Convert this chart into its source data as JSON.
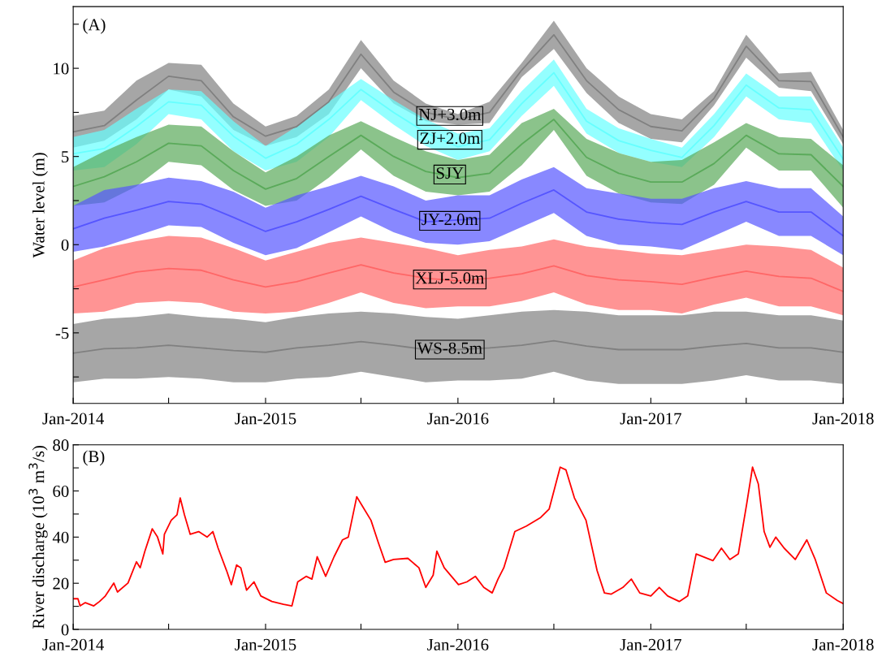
{
  "chart_data": [
    {
      "type": "line",
      "ylabel": "Water level (m)",
      "annotations": [
        "(A)"
      ],
      "x": [
        "2014-01-01",
        "2014-03-01",
        "2014-05-01",
        "2014-07-01",
        "2014-09-01",
        "2014-11-01",
        "2015-01-01",
        "2015-03-01",
        "2015-05-01",
        "2015-07-01",
        "2015-09-01",
        "2015-11-01",
        "2016-01-01",
        "2016-03-01",
        "2016-05-01",
        "2016-07-01",
        "2016-09-01",
        "2016-11-01",
        "2017-01-01",
        "2017-03-01",
        "2017-05-01",
        "2017-07-01",
        "2017-09-01",
        "2017-11-01",
        "2018-01-01"
      ],
      "series": [
        {
          "name": "NJ+3.0m",
          "color": "#808080",
          "values": [
            6.4,
            6.75,
            8.2,
            9.55,
            9.3,
            7.25,
            6.15,
            6.7,
            8.1,
            10.8,
            8.65,
            7.5,
            7.1,
            7.5,
            9.9,
            11.9,
            9.3,
            7.65,
            6.7,
            6.45,
            8.3,
            11.25,
            9.3,
            9.25,
            6.1
          ],
          "upper": [
            7.3,
            7.6,
            9.3,
            10.3,
            10.2,
            8.0,
            6.7,
            7.3,
            8.8,
            11.6,
            9.3,
            8.0,
            7.4,
            8.1,
            10.3,
            12.7,
            10.0,
            8.4,
            7.4,
            7.1,
            8.7,
            11.9,
            9.7,
            9.8,
            6.5
          ],
          "lower": [
            5.5,
            5.9,
            7.1,
            8.8,
            8.4,
            6.5,
            5.6,
            6.1,
            7.4,
            10.0,
            8.0,
            7.0,
            6.8,
            6.9,
            9.5,
            11.1,
            8.6,
            6.9,
            6.0,
            5.8,
            7.9,
            10.6,
            8.9,
            8.7,
            5.7
          ]
        },
        {
          "name": "ZJ+2.0m",
          "color": "#66ffff",
          "values": [
            5.15,
            5.45,
            6.7,
            8.1,
            7.9,
            6.15,
            4.9,
            5.7,
            7.1,
            8.8,
            7.5,
            6.35,
            5.55,
            5.95,
            8.0,
            9.75,
            7.0,
            5.9,
            5.35,
            4.95,
            6.75,
            9.05,
            7.75,
            7.65,
            4.85
          ],
          "upper": [
            6.1,
            6.5,
            7.7,
            8.8,
            8.7,
            7.0,
            5.6,
            6.7,
            8.1,
            9.4,
            8.2,
            7.1,
            6.3,
            6.6,
            8.7,
            10.5,
            7.7,
            6.6,
            6.0,
            5.5,
            7.4,
            9.7,
            8.4,
            8.4,
            5.5
          ],
          "lower": [
            4.2,
            4.4,
            5.7,
            7.4,
            7.1,
            5.3,
            4.2,
            4.7,
            6.1,
            8.2,
            6.8,
            5.6,
            4.8,
            5.3,
            7.3,
            9.0,
            6.3,
            5.2,
            4.7,
            4.4,
            6.1,
            8.4,
            7.1,
            6.9,
            4.2
          ]
        },
        {
          "name": "SJY",
          "color": "#5aaa5a",
          "values": [
            3.3,
            3.85,
            4.7,
            5.75,
            5.6,
            4.2,
            3.15,
            3.75,
            5.0,
            6.2,
            5.0,
            4.15,
            3.8,
            4.05,
            5.7,
            7.1,
            4.95,
            4.05,
            3.55,
            3.55,
            4.6,
            6.2,
            5.15,
            5.1,
            3.3
          ],
          "upper": [
            4.4,
            5.3,
            6.1,
            6.8,
            6.7,
            5.3,
            4.1,
            5.0,
            6.2,
            7.0,
            6.1,
            5.3,
            4.8,
            5.1,
            6.9,
            7.7,
            6.0,
            5.2,
            4.7,
            4.8,
            5.8,
            6.9,
            6.1,
            6.0,
            4.5
          ],
          "lower": [
            2.2,
            2.4,
            3.3,
            4.7,
            4.5,
            3.1,
            2.2,
            2.5,
            3.8,
            5.4,
            3.9,
            3.0,
            2.8,
            3.0,
            4.5,
            6.5,
            3.9,
            2.9,
            2.4,
            2.3,
            3.4,
            5.5,
            4.2,
            4.2,
            2.1
          ]
        },
        {
          "name": "JY-2.0m",
          "color": "#5555ff",
          "values": [
            0.9,
            1.5,
            1.95,
            2.45,
            2.3,
            1.55,
            0.75,
            1.3,
            2.0,
            2.75,
            2.0,
            1.3,
            1.4,
            1.5,
            2.35,
            3.1,
            1.85,
            1.45,
            1.25,
            1.15,
            1.85,
            2.45,
            1.85,
            1.85,
            0.5
          ],
          "upper": [
            2.2,
            3.1,
            3.4,
            3.8,
            3.6,
            3.0,
            2.1,
            2.8,
            3.3,
            3.9,
            3.3,
            2.5,
            2.8,
            2.8,
            3.7,
            4.4,
            3.2,
            2.9,
            2.6,
            2.6,
            3.2,
            3.6,
            3.2,
            3.2,
            1.6
          ],
          "lower": [
            -0.4,
            -0.1,
            0.5,
            1.1,
            1.0,
            0.1,
            -0.6,
            -0.2,
            0.7,
            1.6,
            0.7,
            0.1,
            0.0,
            0.2,
            1.0,
            1.8,
            0.5,
            0.0,
            -0.1,
            -0.3,
            0.5,
            1.3,
            0.5,
            0.5,
            -0.6
          ]
        },
        {
          "name": "XLJ-5.0m",
          "color": "#ff6666",
          "values": [
            -2.4,
            -2.0,
            -1.55,
            -1.35,
            -1.45,
            -2.0,
            -2.4,
            -2.1,
            -1.6,
            -1.15,
            -1.6,
            -1.9,
            -2.05,
            -1.9,
            -1.65,
            -1.2,
            -1.75,
            -2.0,
            -2.1,
            -2.25,
            -1.85,
            -1.5,
            -1.8,
            -1.9,
            -2.65
          ],
          "upper": [
            -0.9,
            -0.2,
            0.2,
            0.5,
            0.4,
            -0.2,
            -0.9,
            -0.4,
            0.1,
            0.4,
            0.1,
            -0.2,
            -0.6,
            -0.3,
            -0.1,
            0.3,
            -0.1,
            -0.3,
            -0.5,
            -0.6,
            -0.3,
            0.0,
            -0.1,
            -0.3,
            -1.3
          ],
          "lower": [
            -3.9,
            -3.8,
            -3.3,
            -3.2,
            -3.3,
            -3.8,
            -3.9,
            -3.8,
            -3.3,
            -2.7,
            -3.3,
            -3.6,
            -3.5,
            -3.5,
            -3.2,
            -2.7,
            -3.4,
            -3.7,
            -3.7,
            -3.9,
            -3.4,
            -3.0,
            -3.5,
            -3.5,
            -4.0
          ]
        },
        {
          "name": "WS-8.5m",
          "color": "#808080",
          "values": [
            -6.15,
            -5.9,
            -5.85,
            -5.7,
            -5.85,
            -6.0,
            -6.1,
            -5.85,
            -5.7,
            -5.5,
            -5.7,
            -5.95,
            -5.95,
            -5.85,
            -5.7,
            -5.45,
            -5.75,
            -5.95,
            -5.95,
            -5.95,
            -5.75,
            -5.6,
            -5.85,
            -5.85,
            -6.1
          ],
          "upper": [
            -4.5,
            -4.2,
            -4.1,
            -3.9,
            -4.1,
            -4.2,
            -4.4,
            -4.1,
            -3.9,
            -3.8,
            -3.9,
            -4.1,
            -4.2,
            -4.0,
            -3.8,
            -3.7,
            -3.8,
            -4.0,
            -4.0,
            -4.0,
            -3.8,
            -3.8,
            -4.0,
            -4.0,
            -4.3
          ],
          "lower": [
            -7.8,
            -7.6,
            -7.6,
            -7.5,
            -7.6,
            -7.8,
            -7.8,
            -7.6,
            -7.5,
            -7.2,
            -7.5,
            -7.8,
            -7.7,
            -7.7,
            -7.6,
            -7.2,
            -7.7,
            -7.9,
            -7.9,
            -7.9,
            -7.7,
            -7.4,
            -7.7,
            -7.7,
            -7.9
          ]
        }
      ],
      "xlim": [
        "2014-01-01",
        "2018-01-01"
      ],
      "xticks": [
        {
          "value": "2014-01-01",
          "label": "Jan-2014"
        },
        {
          "value": "2014-07-01",
          "label": null
        },
        {
          "value": "2015-01-01",
          "label": "Jan-2015"
        },
        {
          "value": "2015-07-01",
          "label": null
        },
        {
          "value": "2016-01-01",
          "label": "Jan-2016"
        },
        {
          "value": "2016-07-01",
          "label": null
        },
        {
          "value": "2017-01-01",
          "label": "Jan-2017"
        },
        {
          "value": "2017-07-01",
          "label": null
        },
        {
          "value": "2018-01-01",
          "label": "Jan-2018"
        }
      ],
      "ylim": [
        -9,
        13.5
      ],
      "yticks": [
        {
          "value": -7.5,
          "label": null
        },
        -5,
        {
          "value": -2.5,
          "label": null
        },
        0,
        {
          "value": 2.5,
          "label": null
        },
        5,
        {
          "value": 7.5,
          "label": null
        },
        10,
        {
          "value": 12.5,
          "label": null
        }
      ]
    },
    {
      "type": "line",
      "ylabel": "River discharge (10$^{3}$ m$^{3}$/s)",
      "annotations": [
        "(B)"
      ],
      "x": [
        "2014-01-01",
        "2014-01-10",
        "2014-01-14",
        "2014-01-24",
        "2014-02-09",
        "2014-02-20",
        "2014-03-03",
        "2014-03-19",
        "2014-03-26",
        "2014-04-15",
        "2014-05-01",
        "2014-05-08",
        "2014-05-17",
        "2014-05-31",
        "2014-06-10",
        "2014-06-20",
        "2014-06-23",
        "2014-07-06",
        "2014-07-17",
        "2014-07-23",
        "2014-07-31",
        "2014-08-11",
        "2014-08-27",
        "2014-09-12",
        "2014-09-23",
        "2014-10-03",
        "2014-10-19",
        "2014-10-28",
        "2014-11-07",
        "2014-11-15",
        "2014-11-26",
        "2014-12-10",
        "2014-12-23",
        "2015-01-13",
        "2015-02-04",
        "2015-02-20",
        "2015-03-03",
        "2015-03-19",
        "2015-03-30",
        "2015-04-09",
        "2015-04-25",
        "2015-05-11",
        "2015-05-27",
        "2015-06-07",
        "2015-06-23",
        "2015-07-04",
        "2015-07-20",
        "2015-08-03",
        "2015-08-16",
        "2015-09-01",
        "2015-09-28",
        "2015-10-19",
        "2015-11-01",
        "2015-11-15",
        "2015-11-22",
        "2015-12-06",
        "2016-01-02",
        "2016-01-18",
        "2016-02-03",
        "2016-02-19",
        "2016-03-06",
        "2016-03-17",
        "2016-03-28",
        "2016-04-18",
        "2016-05-10",
        "2016-06-06",
        "2016-06-22",
        "2016-07-13",
        "2016-07-24",
        "2016-08-09",
        "2016-08-31",
        "2016-09-21",
        "2016-10-05",
        "2016-10-18",
        "2016-11-09",
        "2016-11-25",
        "2016-12-11",
        "2017-01-01",
        "2017-01-17",
        "2017-02-02",
        "2017-02-24",
        "2017-03-12",
        "2017-03-28",
        "2017-04-29",
        "2017-05-15",
        "2017-05-31",
        "2017-06-16",
        "2017-07-02",
        "2017-07-13",
        "2017-07-24",
        "2017-08-04",
        "2017-08-15",
        "2017-08-26",
        "2017-09-11",
        "2017-10-02",
        "2017-10-24",
        "2017-11-09",
        "2017-11-30",
        "2017-12-21",
        "2018-01-01"
      ],
      "series": [
        {
          "color": "#ff0000",
          "values": [
            13.3,
            13.3,
            10.2,
            11.6,
            10.2,
            12.1,
            14.5,
            20.1,
            16.2,
            20.1,
            29.3,
            26.7,
            33.9,
            43.6,
            40.0,
            32.7,
            41.2,
            47.3,
            49.7,
            57.0,
            49.7,
            41.2,
            42.4,
            40.0,
            42.4,
            35.2,
            25.5,
            19.4,
            27.9,
            26.7,
            17.0,
            20.6,
            14.5,
            12.1,
            10.9,
            10.2,
            20.6,
            23.0,
            21.8,
            31.5,
            23.0,
            31.5,
            38.8,
            40.0,
            57.5,
            53.3,
            47.3,
            37.6,
            29.1,
            30.3,
            30.8,
            26.7,
            18.2,
            23.5,
            33.9,
            26.7,
            19.4,
            20.6,
            23.0,
            18.2,
            15.8,
            21.8,
            26.7,
            42.4,
            44.8,
            48.5,
            52.1,
            70.3,
            69.1,
            57.0,
            47.3,
            25.5,
            15.8,
            15.3,
            18.2,
            21.8,
            15.8,
            14.5,
            18.2,
            14.5,
            12.1,
            14.5,
            32.7,
            29.8,
            35.2,
            30.3,
            32.7,
            54.5,
            70.3,
            63.0,
            42.4,
            35.6,
            40.0,
            35.2,
            30.3,
            38.8,
            30.3,
            15.8,
            12.5,
            11.2
          ]
        }
      ],
      "xlim": [
        "2014-01-01",
        "2018-01-01"
      ],
      "xticks": [
        {
          "value": "2014-01-01",
          "label": "Jan-2014"
        },
        {
          "value": "2014-07-01",
          "label": null
        },
        {
          "value": "2015-01-01",
          "label": "Jan-2015"
        },
        {
          "value": "2015-07-01",
          "label": null
        },
        {
          "value": "2016-01-01",
          "label": "Jan-2016"
        },
        {
          "value": "2016-07-01",
          "label": null
        },
        {
          "value": "2017-01-01",
          "label": "Jan-2017"
        },
        {
          "value": "2017-07-01",
          "label": null
        },
        {
          "value": "2018-01-01",
          "label": "Jan-2018"
        }
      ],
      "ylim": [
        0,
        80
      ],
      "yticks": [
        0,
        {
          "value": 10,
          "label": null
        },
        20,
        {
          "value": 30,
          "label": null
        },
        40,
        {
          "value": 50,
          "label": null
        },
        60,
        {
          "value": 70,
          "label": null
        },
        80
      ]
    }
  ]
}
